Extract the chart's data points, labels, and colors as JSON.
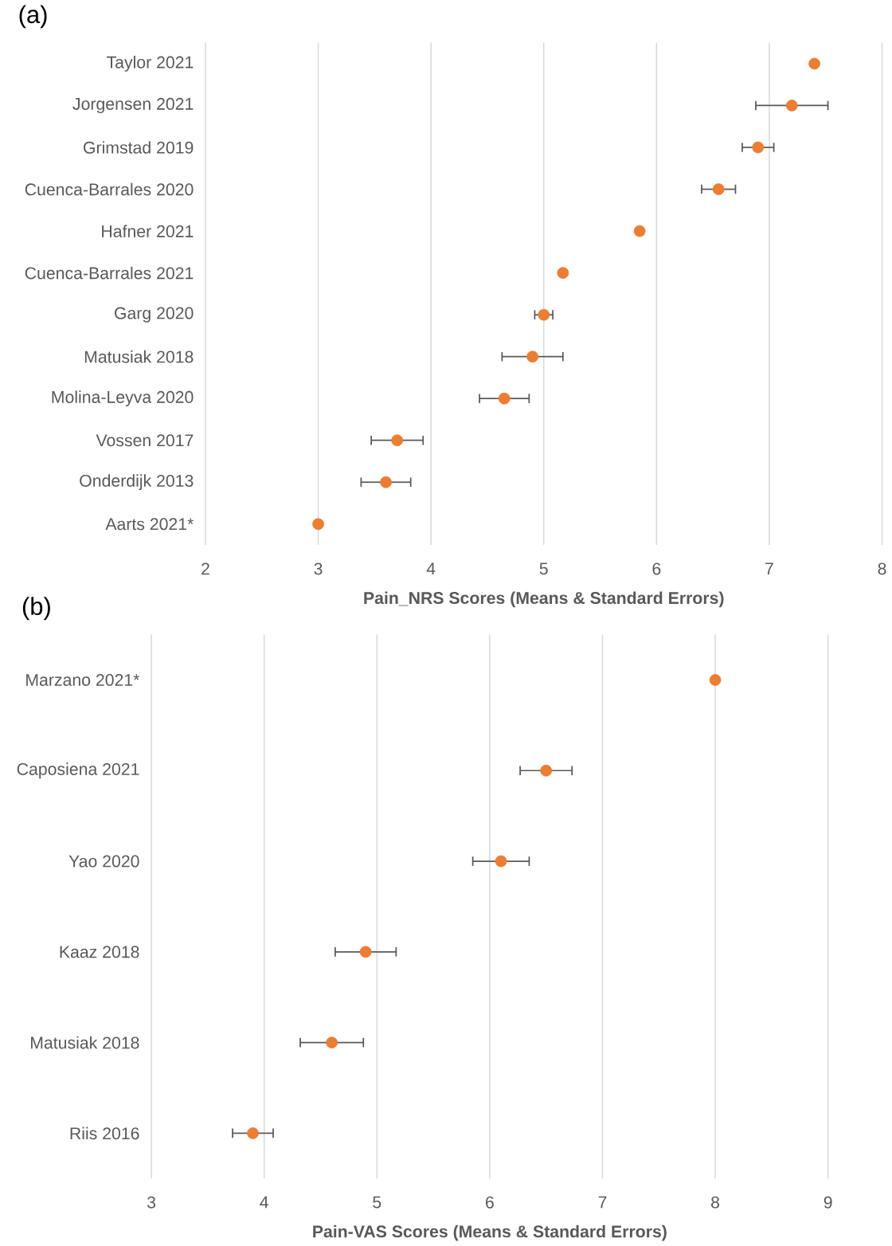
{
  "chart_data": [
    {
      "type": "scatter",
      "orientation": "horizontal",
      "title": "(a)",
      "xlabel": "Pain_NRS Scores (Means & Standard Errors)",
      "categories": [
        "Taylor 2021",
        "Jorgensen 2021",
        "Grimstad 2019",
        "Cuenca-Barrales 2020",
        "Hafner 2021",
        "Cuenca-Barrales 2021",
        "Garg 2020",
        "Matusiak 2018",
        "Molina-Leyva 2020",
        "Vossen 2017",
        "Onderdijk 2013",
        "Aarts 2021*"
      ],
      "values": [
        7.4,
        7.2,
        6.9,
        6.55,
        5.85,
        5.17,
        5.0,
        4.9,
        4.65,
        3.7,
        3.6,
        3.0
      ],
      "errors": [
        null,
        0.32,
        0.14,
        0.15,
        null,
        null,
        0.08,
        0.27,
        0.22,
        0.23,
        0.22,
        null
      ],
      "color": "#ed7d31",
      "marker": "circle",
      "grid": "x",
      "xlim": [
        2,
        8
      ],
      "xticks": [
        2,
        3,
        4,
        5,
        6,
        7,
        8
      ]
    },
    {
      "type": "scatter",
      "orientation": "horizontal",
      "title": "(b)",
      "xlabel": "Pain-VAS Scores (Means & Standard Errors)",
      "categories": [
        "Marzano 2021*",
        "Caposiena 2021",
        "Yao 2020",
        "Kaaz 2018",
        "Matusiak 2018",
        "Riis 2016"
      ],
      "values": [
        8.0,
        6.5,
        6.1,
        4.9,
        4.6,
        3.9
      ],
      "errors": [
        null,
        0.23,
        0.25,
        0.27,
        0.28,
        0.18
      ],
      "color": "#ed7d31",
      "marker": "circle",
      "grid": "x",
      "xlim": [
        3,
        9
      ],
      "xticks": [
        3,
        4,
        5,
        6,
        7,
        8,
        9
      ]
    }
  ]
}
